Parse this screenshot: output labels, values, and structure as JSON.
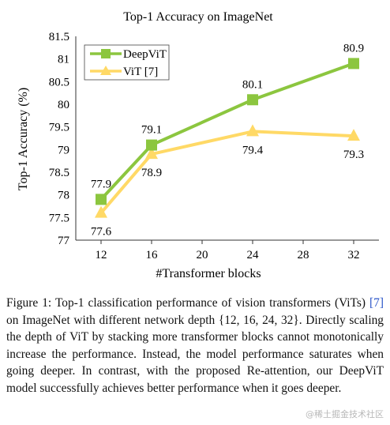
{
  "chart_data": {
    "type": "line",
    "title": "Top-1 Accuracy on ImageNet",
    "xlabel": "#Transformer blocks",
    "ylabel": "Top-1 Accuracy (%)",
    "x_ticks": [
      12,
      16,
      20,
      24,
      28,
      32
    ],
    "y_ticks": [
      "77",
      "77.5",
      "78",
      "78.5",
      "79",
      "79.5",
      "80",
      "80.5",
      "81",
      "81.5"
    ],
    "xlim": [
      10,
      34
    ],
    "ylim": [
      77,
      81.5
    ],
    "grid": false,
    "legend_position": "top-left",
    "series": [
      {
        "name": "DeepViT",
        "color": "#8cc63f",
        "marker": "square",
        "x": [
          12,
          16,
          24,
          32
        ],
        "values": [
          77.9,
          79.1,
          80.1,
          80.9
        ],
        "labels": [
          "77.9",
          "79.1",
          "80.1",
          "80.9"
        ],
        "label_side": "above"
      },
      {
        "name": "ViT [7]",
        "color": "#ffd966",
        "marker": "triangle",
        "x": [
          12,
          16,
          24,
          32
        ],
        "values": [
          77.6,
          78.9,
          79.4,
          79.3
        ],
        "labels": [
          "77.6",
          "78.9",
          "79.4",
          "79.3"
        ],
        "label_side": "below"
      }
    ]
  },
  "caption": {
    "prefix": "Figure 1: Top-1 classification performance of vision transformers (ViTs) ",
    "ref": "[7]",
    "suffix": " on ImageNet with different network depth {12, 16, 24, 32}. Directly scaling the depth of ViT by stacking more transformer blocks cannot monotonically increase the performance. Instead, the model performance saturates when going deeper. In contrast, with the proposed Re-attention, our DeepViT model successfully achieves better performance when it goes deeper."
  },
  "watermark": "@稀土掘金技术社区"
}
